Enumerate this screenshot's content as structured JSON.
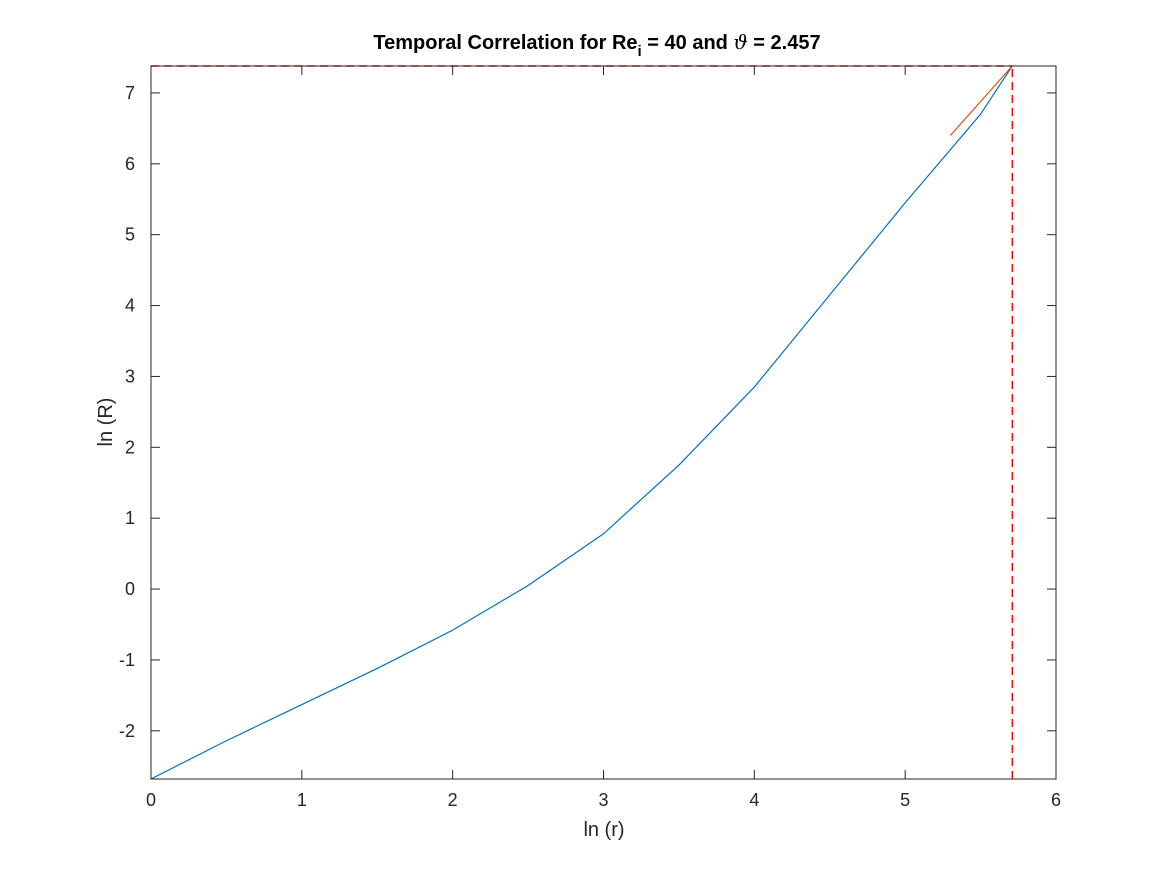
{
  "chart_data": {
    "type": "line",
    "title": {
      "prefix": "Temporal Correlation for Re",
      "subscript": "i",
      "middle": " = 40 and ",
      "symbol": "ϑ",
      "suffix": " = 2.457"
    },
    "xlabel": "ln (r)",
    "ylabel": "ln (R)",
    "xlim": [
      0,
      6
    ],
    "ylim": [
      -2.68,
      7.38
    ],
    "xticks": [
      0,
      1,
      2,
      3,
      4,
      5,
      6
    ],
    "xtick_labels": [
      "0",
      "1",
      "2",
      "3",
      "4",
      "5",
      "6"
    ],
    "yticks": [
      -2,
      -1,
      0,
      1,
      2,
      3,
      4,
      5,
      6,
      7
    ],
    "ytick_labels": [
      "-2",
      "-1",
      "0",
      "1",
      "2",
      "3",
      "4",
      "5",
      "6",
      "7"
    ],
    "grid": false,
    "series": [
      {
        "color": "#0072BD",
        "style": "solid",
        "x": [
          0,
          0.5,
          1.0,
          1.5,
          2.0,
          2.5,
          3.0,
          3.5,
          4.0,
          4.5,
          5.0,
          5.3,
          5.5,
          5.71
        ],
        "y": [
          -2.68,
          -2.14,
          -1.63,
          -1.12,
          -0.58,
          0.05,
          0.78,
          1.75,
          2.85,
          4.15,
          5.45,
          6.2,
          6.7,
          7.38
        ]
      },
      {
        "color": "#D95319",
        "style": "solid",
        "x": [
          5.3,
          5.71
        ],
        "y": [
          6.4,
          7.38
        ]
      },
      {
        "color": "#FF0000",
        "style": "dashed",
        "x": [
          0,
          5.71
        ],
        "y": [
          7.38,
          7.38
        ]
      },
      {
        "color": "#FF0000",
        "style": "dashed",
        "x": [
          5.71,
          5.71
        ],
        "y": [
          -2.68,
          7.38
        ]
      }
    ]
  }
}
